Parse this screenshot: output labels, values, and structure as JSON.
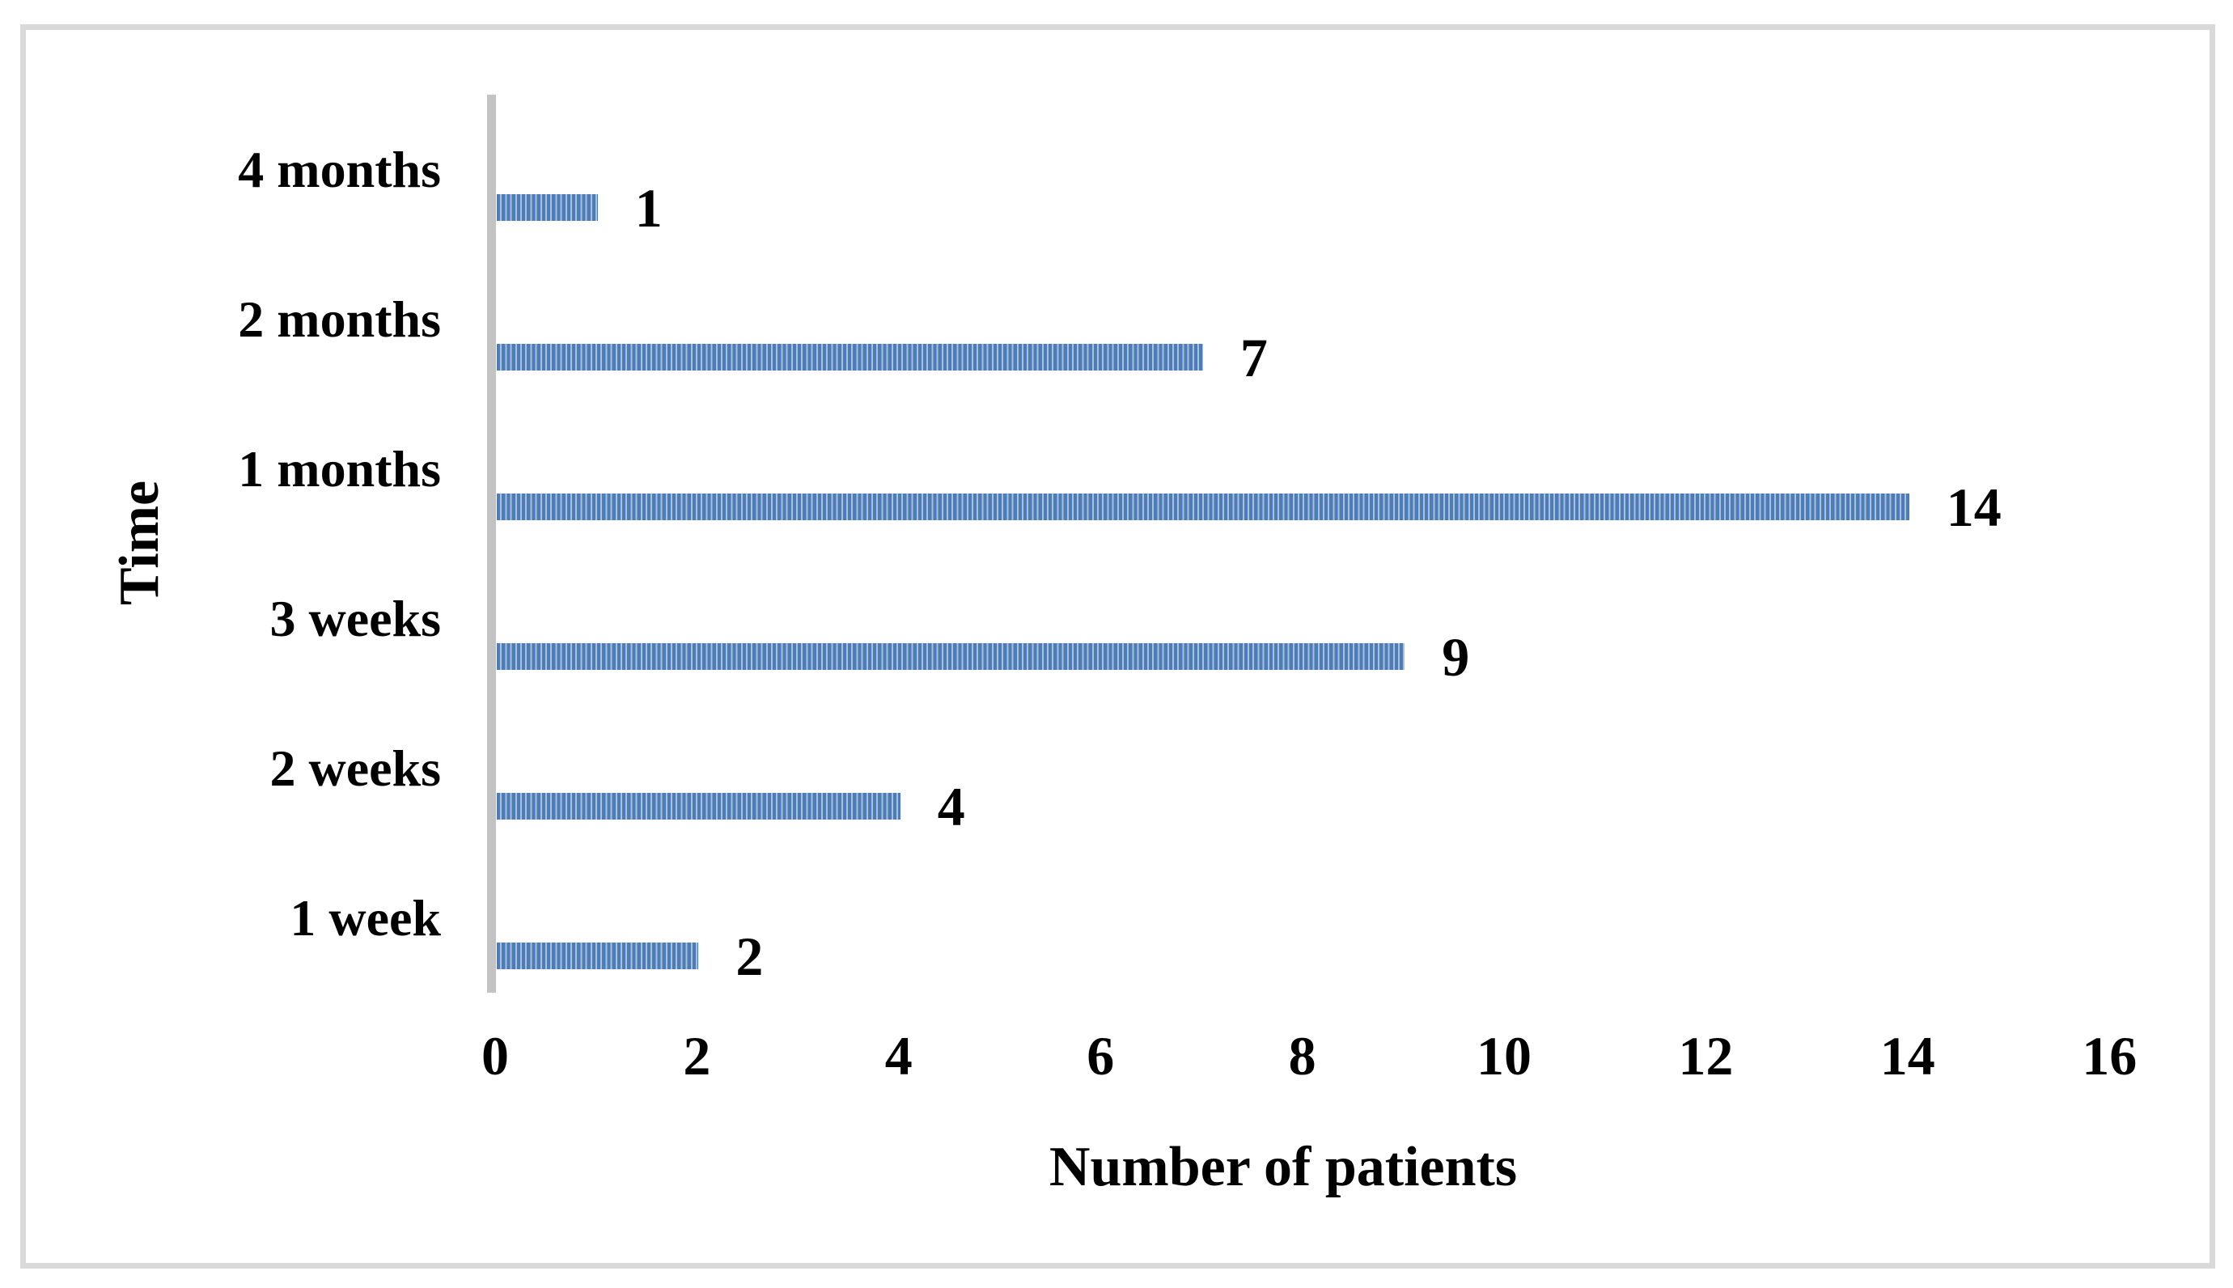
{
  "chart_data": {
    "type": "bar",
    "orientation": "horizontal",
    "title": "",
    "xlabel": "Number of patients",
    "ylabel": "Time",
    "categories": [
      "4 months",
      "2 months",
      "1 months",
      "3 weeks",
      "2 weeks",
      "1 week"
    ],
    "values": [
      1,
      7,
      14,
      9,
      4,
      2
    ],
    "data_labels": [
      "1",
      "7",
      "14",
      "9",
      "4",
      "2"
    ],
    "xlim": [
      0,
      16
    ],
    "xticks": [
      0,
      2,
      4,
      6,
      8,
      10,
      12,
      14,
      16
    ],
    "grid": false,
    "legend": false,
    "bar_texture": "vertical-stripes"
  },
  "colors": {
    "bar_primary": "#4d7cb7",
    "bar_stripe": "#a7c1dc",
    "axis_line": "#c3c3c3",
    "frame_border": "#d9d9d9",
    "text": "#000000",
    "background": "#ffffff"
  }
}
